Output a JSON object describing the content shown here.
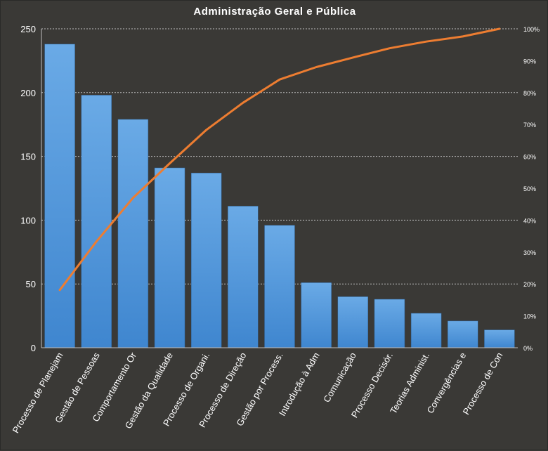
{
  "chart_data": {
    "type": "bar",
    "title": "Administração  Geral  e Pública",
    "categories": [
      "Processo de Planejam",
      "Gestão de Pessoas",
      "Comportamento Or",
      "Gestão da Qualidade",
      "Processo de Organi.",
      "Processo de Direção",
      "Gestão por Process.",
      "Introdução à Adm",
      "Comunicação",
      "Processo Decisór.",
      "Teorias Administ.",
      "Convergências e",
      "Processo de Con"
    ],
    "series": [
      {
        "type": "bar",
        "values": [
          238,
          198,
          179,
          141,
          137,
          111,
          96,
          51,
          40,
          38,
          27,
          21,
          14
        ]
      },
      {
        "type": "line",
        "axis": "right",
        "values": [
          18.1,
          33.3,
          47.0,
          57.8,
          68.3,
          76.8,
          84.1,
          88.0,
          91.0,
          93.9,
          96.0,
          97.6,
          100.0
        ]
      }
    ],
    "yticks": [
      0,
      50,
      100,
      150,
      200,
      250
    ],
    "ylim": [
      0,
      250
    ],
    "y2ticks": [
      "0%",
      "10%",
      "20%",
      "30%",
      "40%",
      "50%",
      "60%",
      "70%",
      "80%",
      "90%",
      "100%"
    ],
    "y2lim": [
      0,
      100
    ],
    "grid": true,
    "colors": {
      "background": "#3a3936",
      "bar": "#4a90d9",
      "bar_light": "#6aaae6",
      "line": "#ed7d31",
      "grid": "#bdbdbd",
      "text": "#ffffff"
    }
  }
}
